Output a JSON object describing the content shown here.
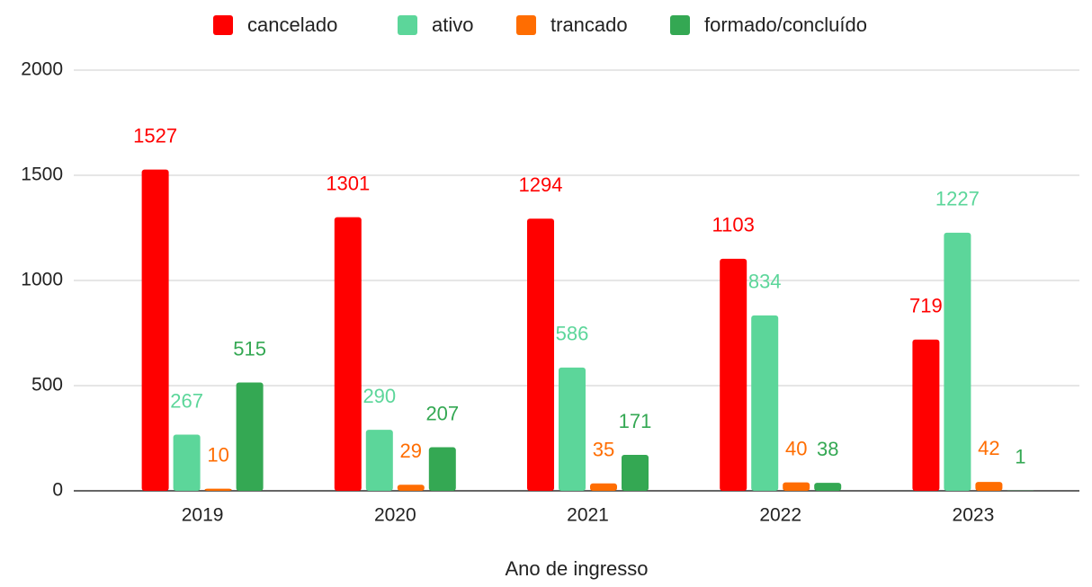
{
  "chart_data": {
    "type": "bar",
    "x_label": "Ano de ingresso",
    "categories": [
      "2019",
      "2020",
      "2021",
      "2022",
      "2023"
    ],
    "series": [
      {
        "name": "cancelado",
        "color": "#ff0000",
        "values": [
          1527,
          1301,
          1294,
          1103,
          719
        ]
      },
      {
        "name": "ativo",
        "color": "#5cd69a",
        "values": [
          267,
          290,
          586,
          834,
          1227
        ]
      },
      {
        "name": "trancado",
        "color": "#ff6d01",
        "values": [
          10,
          29,
          35,
          40,
          42
        ]
      },
      {
        "name": "formado/concluído",
        "color": "#34a853",
        "values": [
          515,
          207,
          171,
          38,
          1
        ]
      }
    ],
    "ylim": [
      0,
      2000
    ],
    "yticks": [
      0,
      500,
      1000,
      1500,
      2000
    ],
    "grid": true,
    "legend": "top"
  }
}
